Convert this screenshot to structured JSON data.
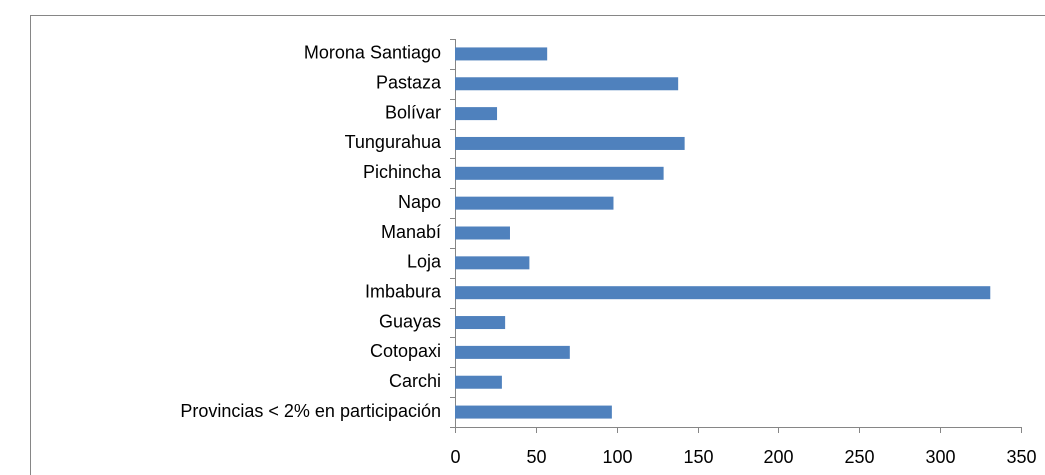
{
  "chart_data": {
    "type": "bar",
    "orientation": "horizontal",
    "categories": [
      "Morona Santiago",
      "Pastaza",
      "Bolívar",
      "Tungurahua",
      "Pichincha",
      "Napo",
      "Manabí",
      "Loja",
      "Imbabura",
      "Guayas",
      "Cotopaxi",
      "Carchi",
      "Provincias < 2% en participación"
    ],
    "values": [
      57,
      138,
      26,
      142,
      129,
      98,
      34,
      46,
      331,
      31,
      71,
      29,
      97
    ],
    "color": "#4f81bd",
    "xlim": [
      0,
      350
    ],
    "xticks": [
      0,
      50,
      100,
      150,
      200,
      250,
      300,
      350
    ],
    "grid": false
  }
}
